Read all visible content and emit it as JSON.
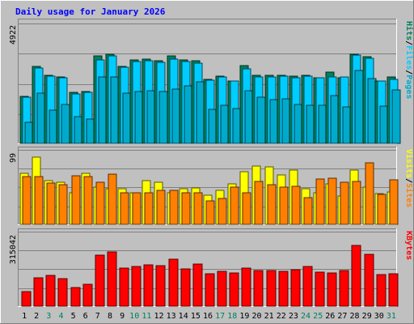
{
  "title": "Daily usage for January 2026",
  "colors": {
    "background": "#C0C0C0",
    "frame_light": "#FFFFFF",
    "frame_dark": "#808080",
    "title": "#0000FF",
    "hits": "#00805C",
    "files": "#00CCFF",
    "pages": "#00AACC",
    "visits": "#FFFF00",
    "sites": "#FF8000",
    "kbytes": "#FF0000",
    "weekday_label": "#000000",
    "weekend_label": "#00805C",
    "gridline": "#808080",
    "slash": "#000000"
  },
  "chart_data": [
    {
      "type": "bar",
      "panel": "hits-files-pages",
      "categories": [
        "1",
        "2",
        "3",
        "4",
        "5",
        "6",
        "7",
        "8",
        "9",
        "10",
        "11",
        "12",
        "13",
        "14",
        "15",
        "16",
        "17",
        "18",
        "19",
        "20",
        "21",
        "22",
        "23",
        "24",
        "25",
        "26",
        "27",
        "28",
        "29",
        "30",
        "31"
      ],
      "weekend_days": [
        "3",
        "4",
        "10",
        "11",
        "17",
        "18",
        "24",
        "25",
        "31"
      ],
      "axis_max_label": "4922",
      "axis_max": 4922,
      "legend": [
        {
          "name": "Pages",
          "color_key": "pages"
        },
        {
          "name": "Files",
          "color_key": "files"
        },
        {
          "name": "Hits",
          "color_key": "hits"
        }
      ],
      "series": [
        {
          "name": "Hits",
          "color_key": "hits",
          "values": [
            2770,
            4550,
            4000,
            3920,
            2980,
            3040,
            5170,
            5260,
            4540,
            4920,
            4960,
            4860,
            5150,
            4910,
            4850,
            3760,
            3960,
            3680,
            4570,
            3990,
            3990,
            4010,
            3950,
            4020,
            3870,
            4200,
            3880,
            5260,
            5120,
            3670,
            3920
          ]
        },
        {
          "name": "Files",
          "color_key": "files",
          "values": [
            2710,
            4410,
            3960,
            3850,
            2910,
            2990,
            4900,
            5170,
            4500,
            4790,
            4850,
            4780,
            4960,
            4790,
            4710,
            3710,
            3910,
            3660,
            4380,
            3910,
            3920,
            3950,
            3880,
            3970,
            3860,
            3920,
            3890,
            5180,
            5010,
            3660,
            3780
          ]
        },
        {
          "name": "Pages",
          "color_key": "pages",
          "values": [
            1220,
            2960,
            1970,
            2270,
            1580,
            1410,
            3900,
            3900,
            2950,
            3030,
            3080,
            3060,
            3170,
            3360,
            3640,
            2010,
            2260,
            2060,
            3080,
            2700,
            2580,
            2620,
            2270,
            2220,
            2220,
            2820,
            2140,
            4310,
            3810,
            2210,
            3160
          ]
        }
      ]
    },
    {
      "type": "bar",
      "panel": "visits-sites",
      "categories": [
        "1",
        "2",
        "3",
        "4",
        "5",
        "6",
        "7",
        "8",
        "9",
        "10",
        "11",
        "12",
        "13",
        "14",
        "15",
        "16",
        "17",
        "18",
        "19",
        "20",
        "21",
        "22",
        "23",
        "24",
        "25",
        "26",
        "27",
        "28",
        "29",
        "30",
        "31"
      ],
      "axis_max_label": "99",
      "axis_max": 99,
      "legend": [
        {
          "name": "Sites",
          "color_key": "sites"
        },
        {
          "name": "Visits",
          "color_key": "visits"
        }
      ],
      "series": [
        {
          "name": "Visits",
          "color_key": "visits",
          "values": [
            97,
            127,
            82,
            80,
            60,
            96,
            70,
            68,
            68,
            60,
            82,
            79,
            59,
            67,
            69,
            55,
            65,
            77,
            100,
            111,
            108,
            93,
            102,
            68,
            59,
            77,
            54,
            103,
            71,
            58,
            62
          ]
        },
        {
          "name": "Sites",
          "color_key": "sites",
          "values": [
            90,
            90,
            78,
            75,
            92,
            90,
            79,
            95,
            60,
            59,
            60,
            65,
            65,
            59,
            59,
            45,
            49,
            70,
            59,
            81,
            75,
            71,
            72,
            50,
            86,
            88,
            79,
            81,
            117,
            56,
            85
          ]
        }
      ]
    },
    {
      "type": "bar",
      "panel": "kbytes",
      "categories": [
        "1",
        "2",
        "3",
        "4",
        "5",
        "6",
        "7",
        "8",
        "9",
        "10",
        "11",
        "12",
        "13",
        "14",
        "15",
        "16",
        "17",
        "18",
        "19",
        "20",
        "21",
        "22",
        "23",
        "24",
        "25",
        "26",
        "27",
        "28",
        "29",
        "30",
        "31"
      ],
      "axis_max_label": "315042",
      "axis_max": 315042,
      "legend": [
        {
          "name": "KBytes",
          "color_key": "kbytes"
        }
      ],
      "series": [
        {
          "name": "KBytes",
          "color_key": "kbytes",
          "values": [
            97000,
            189000,
            203000,
            183000,
            122000,
            143000,
            337000,
            360000,
            250000,
            263000,
            272000,
            268000,
            312000,
            248000,
            278000,
            213000,
            232000,
            218000,
            250000,
            236000,
            234000,
            232000,
            240000,
            262000,
            226000,
            217000,
            237000,
            399000,
            342000,
            208000,
            215000
          ]
        }
      ]
    }
  ]
}
